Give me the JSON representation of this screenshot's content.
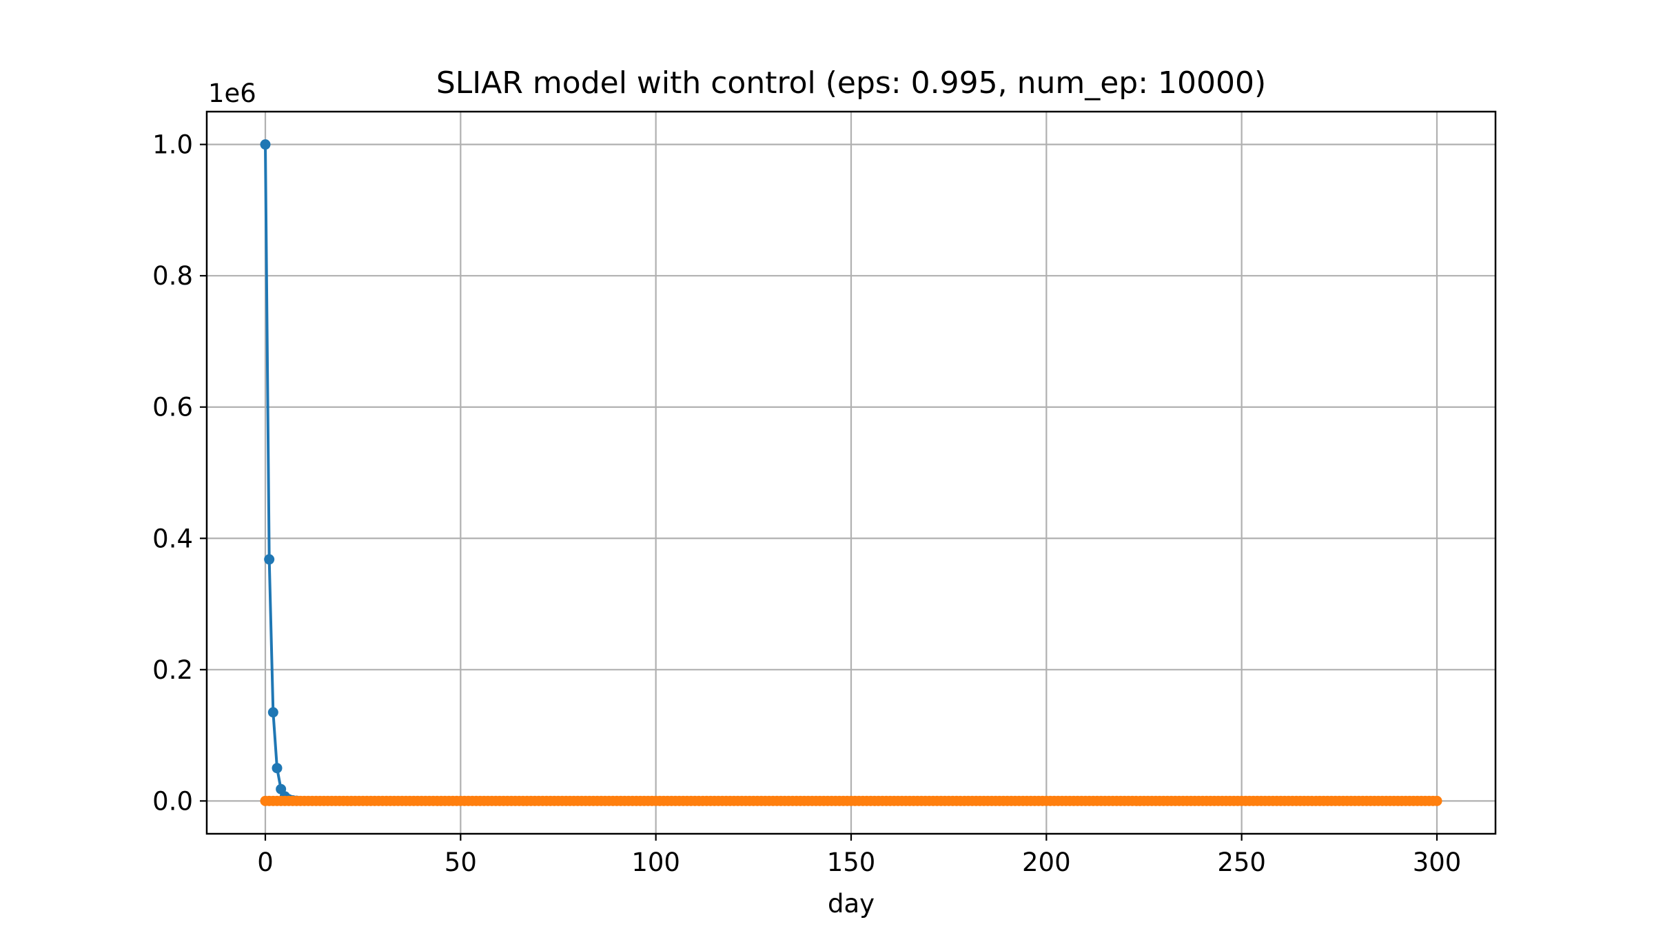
{
  "chart_data": {
    "type": "line",
    "title": "SLIAR model with control (eps: 0.995, num_ep: 10000)",
    "xlabel": "day",
    "ylabel": "",
    "y_offset_label": "1e6",
    "xlim": [
      -15,
      315
    ],
    "ylim": [
      -0.05,
      1.05
    ],
    "grid": true,
    "legend": "none",
    "x_ticks": [
      0,
      50,
      100,
      150,
      200,
      250,
      300
    ],
    "x_tick_labels": [
      "0",
      "50",
      "100",
      "150",
      "200",
      "250",
      "300"
    ],
    "y_ticks": [
      0.0,
      0.2,
      0.4,
      0.6,
      0.8,
      1.0
    ],
    "y_tick_labels": [
      "0.0",
      "0.2",
      "0.4",
      "0.6",
      "0.8",
      "1.0"
    ],
    "series": [
      {
        "color": "#1f77b4",
        "marker": "circle",
        "x": [
          0,
          1,
          2,
          3,
          4,
          5,
          6,
          7,
          8
        ],
        "values": [
          1.0,
          0.368,
          0.135,
          0.05,
          0.018,
          0.007,
          0.0025,
          0.0009,
          0.0003
        ]
      },
      {
        "color": "#ff7f0e",
        "marker": "circle",
        "x_range": [
          0,
          300
        ],
        "x_step": 1,
        "constant_value": 0.0
      }
    ]
  }
}
